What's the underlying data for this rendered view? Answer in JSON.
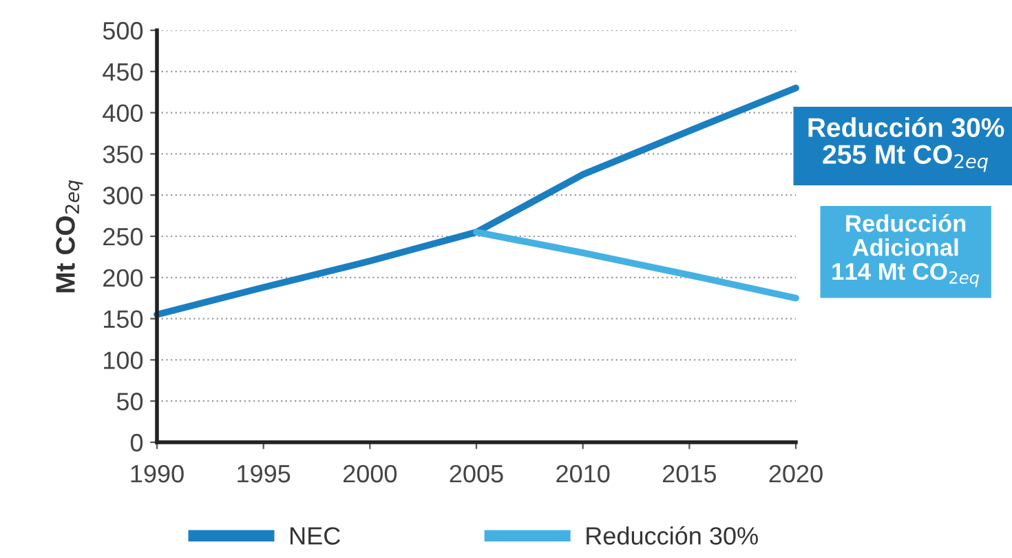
{
  "chart_data": {
    "type": "line",
    "ylabel": "Mt CO$_{2eq}$",
    "x": [
      1990,
      1995,
      2000,
      2005,
      2010,
      2015,
      2020
    ],
    "series": [
      {
        "name": "NEC",
        "color": "#1a7fc1",
        "values": [
          155,
          188,
          220,
          255,
          325,
          378,
          430
        ]
      },
      {
        "name": "Reducción 30%",
        "color": "#45b1e3",
        "values": [
          null,
          null,
          null,
          255,
          230,
          203,
          175
        ]
      }
    ],
    "xlim": [
      1990,
      2020
    ],
    "xticks": [
      1990,
      1995,
      2000,
      2005,
      2010,
      2015,
      2020
    ],
    "ylim": [
      0,
      500
    ],
    "yticks": [
      0,
      50,
      100,
      150,
      200,
      250,
      300,
      350,
      400,
      450,
      500
    ],
    "grid": "y",
    "legend": "bottom",
    "marker": "none",
    "line_style": "solid",
    "annotations": [
      "Reducción 30%\n255 Mt CO$_{2eq}$",
      "Reducción\nAdicional\n114 Mt CO$_{2eq}$"
    ]
  }
}
